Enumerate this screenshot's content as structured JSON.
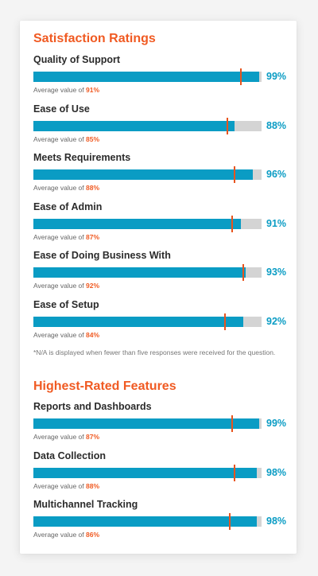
{
  "satisfaction": {
    "title": "Satisfaction Ratings",
    "items": [
      {
        "label": "Quality of Support",
        "value": 99,
        "value_text": "99%",
        "average": 91,
        "average_prefix": "Average value of ",
        "average_text": "91%"
      },
      {
        "label": "Ease of Use",
        "value": 88,
        "value_text": "88%",
        "average": 85,
        "average_prefix": "Average value of ",
        "average_text": "85%"
      },
      {
        "label": "Meets Requirements",
        "value": 96,
        "value_text": "96%",
        "average": 88,
        "average_prefix": "Average value of ",
        "average_text": "88%"
      },
      {
        "label": "Ease of Admin",
        "value": 91,
        "value_text": "91%",
        "average": 87,
        "average_prefix": "Average value of ",
        "average_text": "87%"
      },
      {
        "label": "Ease of Doing Business With",
        "value": 93,
        "value_text": "93%",
        "average": 92,
        "average_prefix": "Average value of ",
        "average_text": "92%"
      },
      {
        "label": "Ease of Setup",
        "value": 92,
        "value_text": "92%",
        "average": 84,
        "average_prefix": "Average value of ",
        "average_text": "84%"
      }
    ],
    "footnote": "*N/A is displayed when fewer than five responses were received for the question."
  },
  "features": {
    "title": "Highest-Rated Features",
    "items": [
      {
        "label": "Reports and Dashboards",
        "value": 99,
        "value_text": "99%",
        "average": 87,
        "average_prefix": "Average value of ",
        "average_text": "87%"
      },
      {
        "label": "Data Collection",
        "value": 98,
        "value_text": "98%",
        "average": 88,
        "average_prefix": "Average value of ",
        "average_text": "88%"
      },
      {
        "label": "Multichannel Tracking",
        "value": 98,
        "value_text": "98%",
        "average": 86,
        "average_prefix": "Average value of ",
        "average_text": "86%"
      }
    ]
  },
  "colors": {
    "accent": "#f05a22",
    "bar_fill": "#0a9cc4",
    "bar_track": "#d4d4d4",
    "marker": "#e8541e"
  }
}
